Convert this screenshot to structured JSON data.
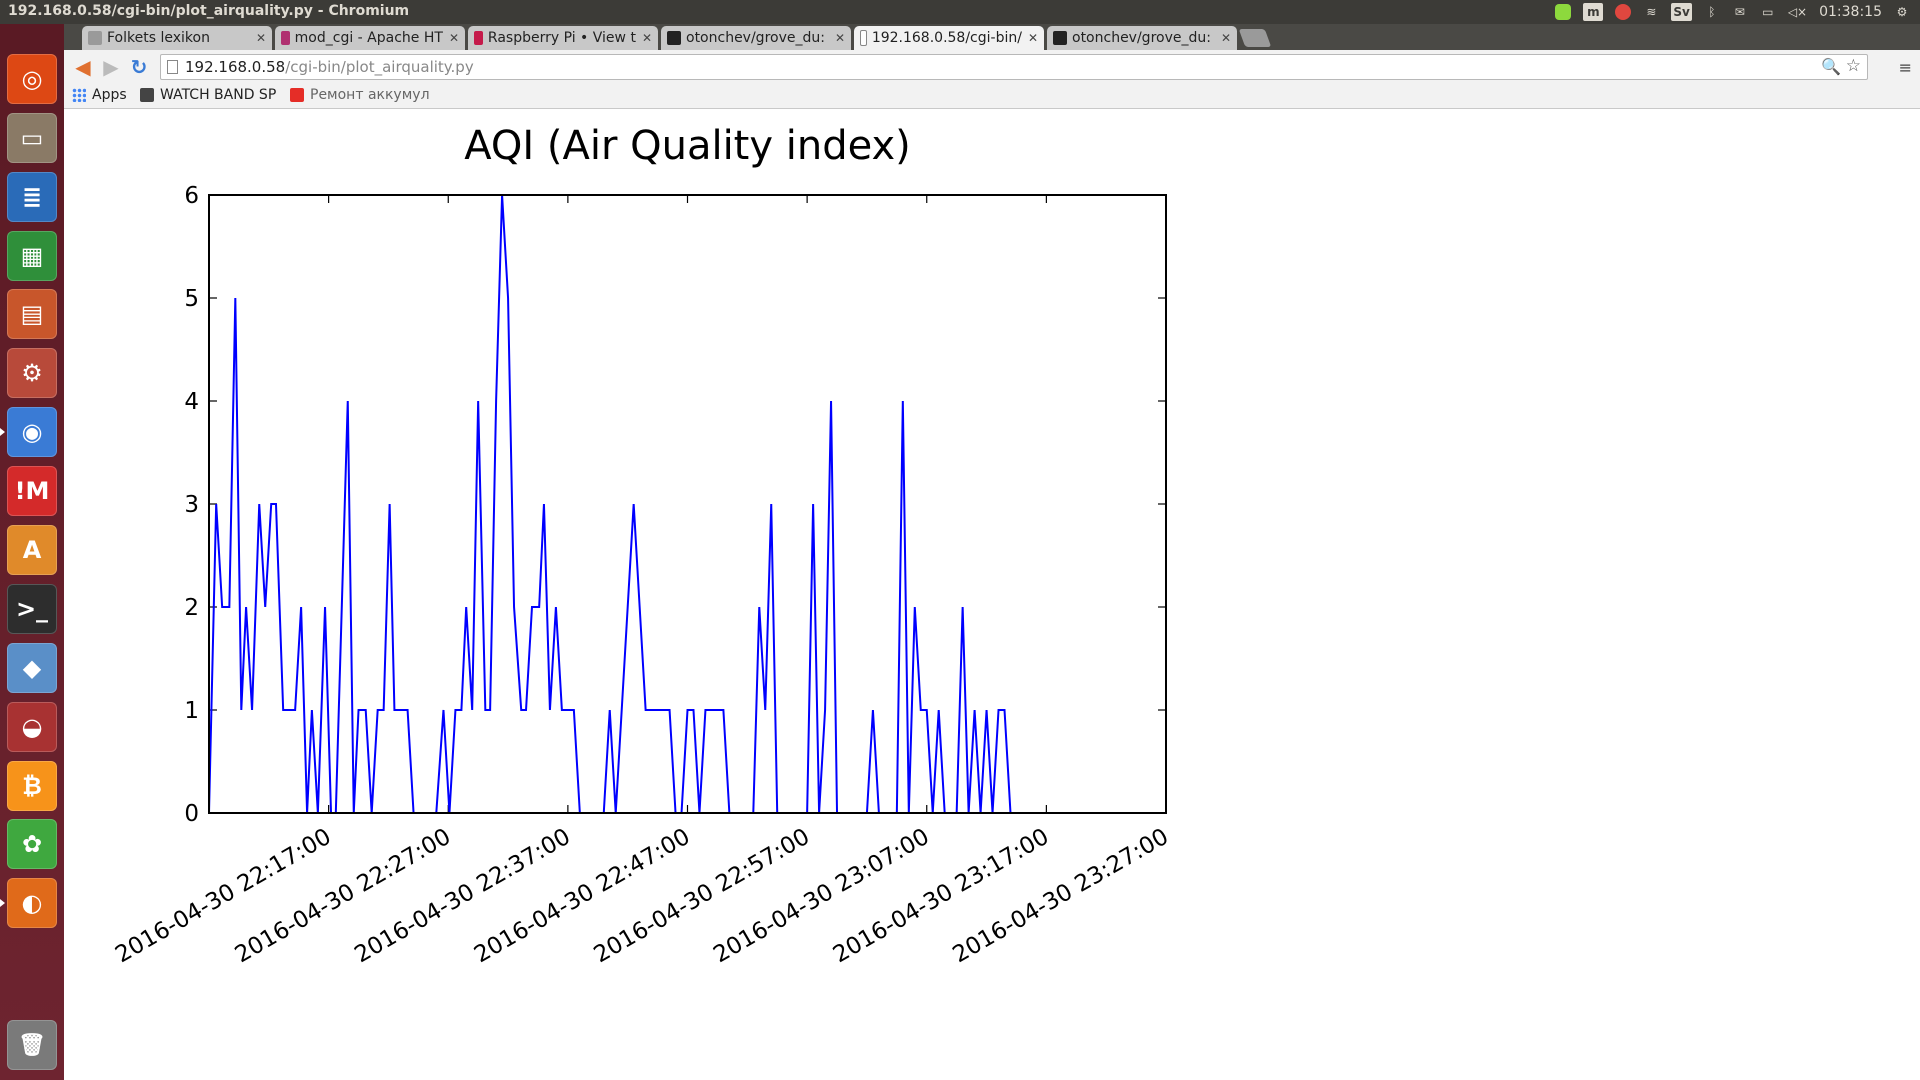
{
  "window": {
    "title": "192.168.0.58/cgi-bin/plot_airquality.py - Chromium"
  },
  "system_tray": {
    "keyboard_layout": "Sv",
    "clock": "01:38:15",
    "icons": [
      "evernote-icon",
      "app-indicator-icon",
      "blocked-icon",
      "wifi-icon",
      "keyboard-icon",
      "bluetooth-icon",
      "mail-icon",
      "battery-icon",
      "volume-muted-icon",
      "settings-gear-icon"
    ]
  },
  "launcher": {
    "items": [
      {
        "name": "ubuntu-dash-icon",
        "color": "#dd4814",
        "glyph": "◎"
      },
      {
        "name": "files-icon",
        "color": "#8a7a66",
        "glyph": "▭"
      },
      {
        "name": "writer-icon",
        "color": "#2a6bb8",
        "glyph": "≣"
      },
      {
        "name": "calc-icon",
        "color": "#2f8f3a",
        "glyph": "▦"
      },
      {
        "name": "impress-icon",
        "color": "#c8562b",
        "glyph": "▤"
      },
      {
        "name": "system-settings-icon",
        "color": "#b84a3a",
        "glyph": "⚙"
      },
      {
        "name": "chromium-icon",
        "color": "#3a7bd5",
        "glyph": "◉"
      },
      {
        "name": "im-app-icon",
        "color": "#d42a2a",
        "glyph": "!M"
      },
      {
        "name": "software-center-icon",
        "color": "#e08a2a",
        "glyph": "A"
      },
      {
        "name": "terminal-icon",
        "color": "#2d2d2d",
        "glyph": ">_"
      },
      {
        "name": "cube-app-icon",
        "color": "#5a8fc8",
        "glyph": "◆"
      },
      {
        "name": "redcar-icon",
        "color": "#a83232",
        "glyph": "◒"
      },
      {
        "name": "bitcoin-icon",
        "color": "#f7931a",
        "glyph": "₿"
      },
      {
        "name": "icq-icon",
        "color": "#3fa83f",
        "glyph": "✿"
      },
      {
        "name": "firefox-icon",
        "color": "#e06a1a",
        "glyph": "◐"
      }
    ],
    "trash": {
      "name": "trash-icon",
      "color": "#7a7a7a",
      "glyph": "🗑"
    }
  },
  "tabs": [
    {
      "label": "Folkets lexikon",
      "icon_color": "#9a9a9a",
      "active": false
    },
    {
      "label": "mod_cgi - Apache HT",
      "icon_color": "#b03070",
      "active": false
    },
    {
      "label": "Raspberry Pi • View t",
      "icon_color": "#c51a4a",
      "active": false
    },
    {
      "label": "otonchev/grove_du:",
      "icon_color": "#222222",
      "active": false
    },
    {
      "label": "192.168.0.58/cgi-bin/",
      "icon_color": "#ffffff",
      "active": true
    },
    {
      "label": "otonchev/grove_du:",
      "icon_color": "#222222",
      "active": false
    }
  ],
  "toolbar": {
    "back_icon": "◀",
    "forward_icon": "▶",
    "reload_icon": "↻",
    "url_host": "192.168.0.58",
    "url_path": "/cgi-bin/plot_airquality.py",
    "zoom_icon": "🔍",
    "star_icon": "☆",
    "menu_icon": "≡"
  },
  "bookmarks": [
    {
      "label": "Apps",
      "type": "apps"
    },
    {
      "label": "WATCH BAND SP",
      "type": "link",
      "icon_color": "#444444"
    },
    {
      "label": "Ремонт аккумул",
      "type": "link",
      "icon_color": "#e52d27"
    }
  ],
  "chart_data": {
    "type": "line",
    "title": "AQI (Air Quality index)",
    "xlabel": "",
    "ylabel": "",
    "ylim": [
      0,
      6
    ],
    "yticks": [
      0,
      1,
      2,
      3,
      4,
      5,
      6
    ],
    "xlim": [
      "2016-04-30 22:07:00",
      "2016-04-30 23:27:00"
    ],
    "xticks": [
      "2016-04-30 22:17:00",
      "2016-04-30 22:27:00",
      "2016-04-30 22:37:00",
      "2016-04-30 22:47:00",
      "2016-04-30 22:57:00",
      "2016-04-30 23:07:00",
      "2016-04-30 23:17:00",
      "2016-04-30 23:27:00"
    ],
    "line_color": "#0000ff",
    "series": [
      {
        "name": "",
        "x": [
          "2016-04-30 22:07:00",
          "2016-04-30 22:07:36",
          "2016-04-30 22:08:06",
          "2016-04-30 22:08:42",
          "2016-04-30 22:09:12",
          "2016-04-30 22:09:42",
          "2016-04-30 22:10:06",
          "2016-04-30 22:10:36",
          "2016-04-30 22:11:12",
          "2016-04-30 22:11:42",
          "2016-04-30 22:12:12",
          "2016-04-30 22:12:36",
          "2016-04-30 22:13:12",
          "2016-04-30 22:13:42",
          "2016-04-30 22:14:12",
          "2016-04-30 22:14:42",
          "2016-04-30 22:15:12",
          "2016-04-30 22:15:36",
          "2016-04-30 22:16:06",
          "2016-04-30 22:16:42",
          "2016-04-30 22:17:12",
          "2016-04-30 22:17:36",
          "2016-04-30 22:18:06",
          "2016-04-30 22:18:36",
          "2016-04-30 22:19:06",
          "2016-04-30 22:19:30",
          "2016-04-30 22:20:06",
          "2016-04-30 22:20:36",
          "2016-04-30 22:21:06",
          "2016-04-30 22:21:36",
          "2016-04-30 22:22:06",
          "2016-04-30 22:22:30",
          "2016-04-30 22:23:00",
          "2016-04-30 22:23:36",
          "2016-04-30 22:24:06",
          "2016-04-30 22:24:36",
          "2016-04-30 22:25:06",
          "2016-04-30 22:25:30",
          "2016-04-30 22:26:00",
          "2016-04-30 22:26:36",
          "2016-04-30 22:27:06",
          "2016-04-30 22:27:36",
          "2016-04-30 22:28:06",
          "2016-04-30 22:28:30",
          "2016-04-30 22:29:00",
          "2016-04-30 22:29:30",
          "2016-04-30 22:30:06",
          "2016-04-30 22:30:30",
          "2016-04-30 22:31:00",
          "2016-04-30 22:31:30",
          "2016-04-30 22:32:00",
          "2016-04-30 22:32:30",
          "2016-04-30 22:33:06",
          "2016-04-30 22:33:30",
          "2016-04-30 22:34:00",
          "2016-04-30 22:34:36",
          "2016-04-30 22:35:00",
          "2016-04-30 22:35:30",
          "2016-04-30 22:36:00",
          "2016-04-30 22:36:30",
          "2016-04-30 22:37:06",
          "2016-04-30 22:37:30",
          "2016-04-30 22:38:00",
          "2016-04-30 22:38:30",
          "2016-04-30 22:39:00",
          "2016-04-30 22:39:30",
          "2016-04-30 22:40:00",
          "2016-04-30 22:40:30",
          "2016-04-30 22:41:00",
          "2016-04-30 22:41:30",
          "2016-04-30 22:42:00",
          "2016-04-30 22:42:30",
          "2016-04-30 22:43:00",
          "2016-04-30 22:43:30",
          "2016-04-30 22:44:00",
          "2016-04-30 22:44:30",
          "2016-04-30 22:45:00",
          "2016-04-30 22:45:30",
          "2016-04-30 22:46:00",
          "2016-04-30 22:46:30",
          "2016-04-30 22:47:00",
          "2016-04-30 22:47:30",
          "2016-04-30 22:48:00",
          "2016-04-30 22:48:30",
          "2016-04-30 22:49:00",
          "2016-04-30 22:49:30",
          "2016-04-30 22:50:00",
          "2016-04-30 22:50:30",
          "2016-04-30 22:51:00",
          "2016-04-30 22:51:30",
          "2016-04-30 22:52:00",
          "2016-04-30 22:52:30",
          "2016-04-30 22:53:00",
          "2016-04-30 22:53:30",
          "2016-04-30 22:54:00",
          "2016-04-30 22:54:30",
          "2016-04-30 22:55:00",
          "2016-04-30 22:55:30",
          "2016-04-30 22:56:00",
          "2016-04-30 22:56:30",
          "2016-04-30 22:57:00",
          "2016-04-30 22:57:30",
          "2016-04-30 22:58:00",
          "2016-04-30 22:58:30",
          "2016-04-30 22:59:00",
          "2016-04-30 22:59:30",
          "2016-04-30 23:00:00",
          "2016-04-30 23:00:30",
          "2016-04-30 23:01:00",
          "2016-04-30 23:01:30",
          "2016-04-30 23:02:00",
          "2016-04-30 23:02:30",
          "2016-04-30 23:03:00",
          "2016-04-30 23:03:30",
          "2016-04-30 23:04:00",
          "2016-04-30 23:04:30",
          "2016-04-30 23:05:00",
          "2016-04-30 23:05:30",
          "2016-04-30 23:06:00",
          "2016-04-30 23:06:30",
          "2016-04-30 23:07:00",
          "2016-04-30 23:07:30",
          "2016-04-30 23:08:00",
          "2016-04-30 23:08:30",
          "2016-04-30 23:09:00",
          "2016-04-30 23:09:30",
          "2016-04-30 23:10:00",
          "2016-04-30 23:10:30",
          "2016-04-30 23:11:00",
          "2016-04-30 23:11:30",
          "2016-04-30 23:12:00",
          "2016-04-30 23:12:30",
          "2016-04-30 23:13:00",
          "2016-04-30 23:13:30",
          "2016-04-30 23:14:00",
          "2016-04-30 23:14:30",
          "2016-04-30 23:15:00",
          "2016-04-30 23:15:30",
          "2016-04-30 23:16:00",
          "2016-04-30 23:16:30",
          "2016-04-30 23:17:00",
          "2016-04-30 23:17:30",
          "2016-04-30 23:18:00",
          "2016-04-30 23:18:30",
          "2016-04-30 23:19:00",
          "2016-04-30 23:19:30",
          "2016-04-30 23:20:00",
          "2016-04-30 23:20:30",
          "2016-04-30 23:21:00",
          "2016-04-30 23:21:30",
          "2016-04-30 23:22:00",
          "2016-04-30 23:22:30",
          "2016-04-30 23:23:00",
          "2016-04-30 23:23:30",
          "2016-04-30 23:24:00",
          "2016-04-30 23:24:30",
          "2016-04-30 23:25:00",
          "2016-04-30 23:25:30",
          "2016-04-30 23:26:00",
          "2016-04-30 23:26:30",
          "2016-04-30 23:27:00"
        ],
        "values": [
          0,
          3,
          2,
          2,
          5,
          1,
          2,
          1,
          3,
          2,
          3,
          3,
          1,
          1,
          1,
          2,
          0,
          1,
          0,
          2,
          0,
          0,
          2,
          4,
          0,
          1,
          1,
          0,
          1,
          1,
          3,
          1,
          1,
          1,
          0,
          0,
          0,
          0,
          0,
          1,
          0,
          1,
          1,
          2,
          1,
          4,
          1,
          1,
          4,
          6,
          5,
          2,
          1,
          1,
          2,
          2,
          3,
          1,
          2,
          1,
          1,
          1,
          0,
          0,
          0,
          0,
          0,
          1,
          0,
          1,
          2,
          3,
          2,
          1,
          1,
          1,
          1,
          1,
          0,
          0,
          1,
          1,
          0,
          1,
          1,
          1,
          1,
          0,
          0,
          0,
          0,
          0,
          2,
          1,
          3,
          0,
          0,
          0,
          0,
          0,
          0,
          3,
          0,
          1,
          4,
          0,
          0,
          0,
          0,
          0,
          0,
          1,
          0,
          0,
          0,
          0,
          4,
          0,
          2,
          1,
          1,
          0,
          1,
          0,
          0,
          0,
          2,
          0,
          1,
          0,
          1,
          0,
          1,
          1,
          0,
          0,
          0,
          0,
          0,
          0,
          0,
          0,
          0,
          0,
          0,
          0,
          0,
          0,
          0,
          0,
          0,
          0,
          0,
          0,
          0,
          0,
          0,
          0,
          0,
          0,
          0
        ]
      }
    ]
  }
}
